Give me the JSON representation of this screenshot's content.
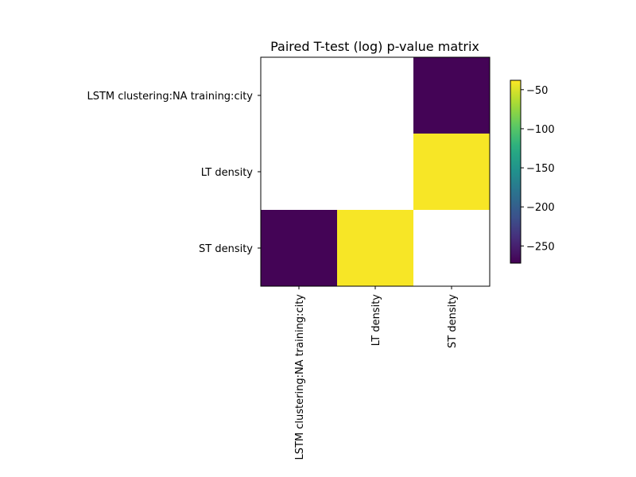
{
  "chart_data": {
    "type": "heatmap",
    "title": "Paired T-test (log) p-value matrix",
    "xlabel": "",
    "ylabel": "",
    "row_labels": [
      "LSTM clustering:NA training:city",
      "LT density",
      "ST density"
    ],
    "col_labels": [
      "LSTM clustering:NA training:city",
      "LT density",
      "ST density"
    ],
    "values": [
      [
        null,
        null,
        -270
      ],
      [
        null,
        null,
        -40
      ],
      [
        -270,
        -40,
        null
      ]
    ],
    "colorbar": {
      "colormap": "viridis",
      "range": [
        -272,
        -38
      ],
      "ticks": [
        -50,
        -100,
        -150,
        -200,
        -250
      ],
      "tick_labels": [
        "−50",
        "−100",
        "−150",
        "−200",
        "−250"
      ]
    },
    "masked_color": "#ffffff",
    "grid": false
  }
}
